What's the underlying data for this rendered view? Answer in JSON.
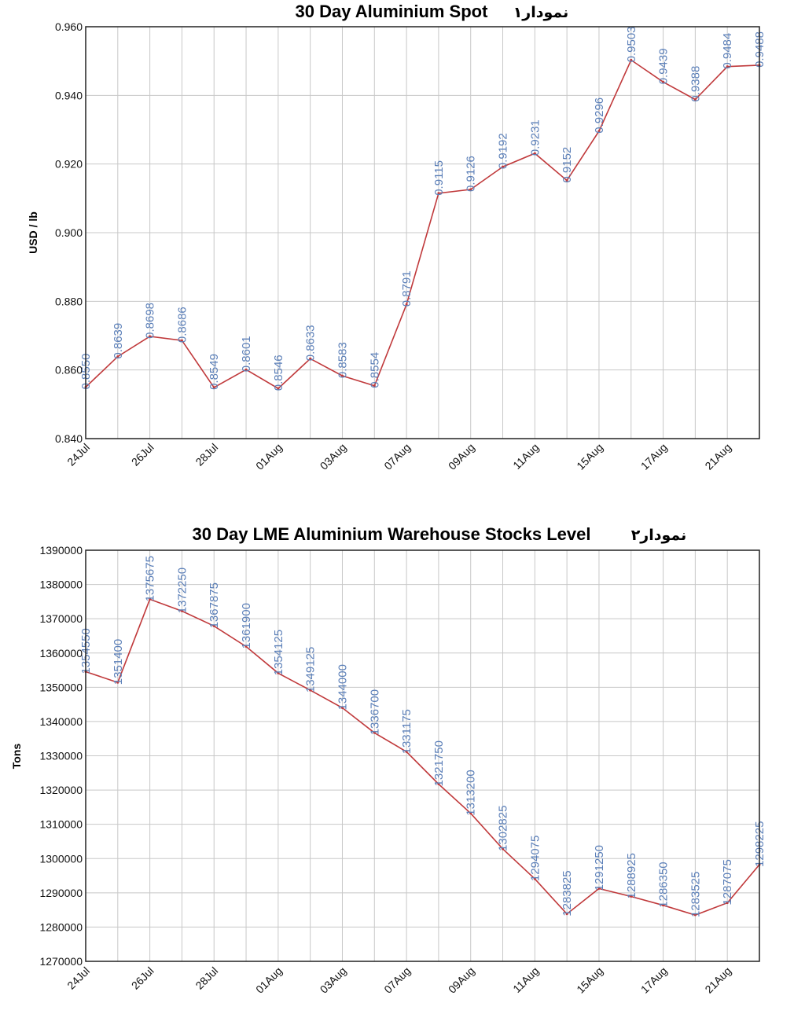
{
  "chart_data": [
    {
      "type": "line",
      "title": "30 Day Aluminium Spot",
      "tag": "نمودار۱",
      "ylabel": "USD / lb",
      "xlabel": "",
      "ylim": [
        0.84,
        0.96
      ],
      "ytick_values": [
        0.84,
        0.86,
        0.88,
        0.9,
        0.92,
        0.94,
        0.96
      ],
      "ytick_labels": [
        "0.840",
        "0.860",
        "0.880",
        "0.900",
        "0.920",
        "0.940",
        "0.960"
      ],
      "xtick_labels": [
        "24Jul",
        "26Jul",
        "28Jul",
        "01Aug",
        "03Aug",
        "07Aug",
        "09Aug",
        "11Aug",
        "15Aug",
        "17Aug",
        "21Aug"
      ],
      "grid": true,
      "color": "#c0393b",
      "label_color": "#5b7fb8",
      "values": [
        0.855,
        0.8639,
        0.8698,
        0.8686,
        0.8549,
        0.8601,
        0.8546,
        0.8633,
        0.8583,
        0.8554,
        0.8791,
        0.9115,
        0.9126,
        0.9192,
        0.9231,
        0.9152,
        0.9296,
        0.9503,
        0.9439,
        0.9388,
        0.9484,
        0.9488
      ],
      "value_labels": [
        "0.8550",
        "0.8639",
        "0.8698",
        "0.8686",
        "0.8549",
        "0.8601",
        "0.8546",
        "0.8633",
        "0.8583",
        "0.8554",
        "0.8791",
        "0.9115",
        "0.9126",
        "0.9192",
        "0.9231",
        "0.9152",
        "0.9296",
        "0.9503",
        "0.9439",
        "0.9388",
        "0.9484",
        "0.9488"
      ]
    },
    {
      "type": "line",
      "title": "30 Day LME Aluminium Warehouse Stocks Level",
      "tag": "نمودار۲",
      "ylabel": "Tons",
      "xlabel": "",
      "ylim": [
        1270000,
        1390000
      ],
      "ytick_values": [
        1270000,
        1280000,
        1290000,
        1300000,
        1310000,
        1320000,
        1330000,
        1340000,
        1350000,
        1360000,
        1370000,
        1380000,
        1390000
      ],
      "ytick_labels": [
        "1270000",
        "1280000",
        "1290000",
        "1300000",
        "1310000",
        "1320000",
        "1330000",
        "1340000",
        "1350000",
        "1360000",
        "1370000",
        "1380000",
        "1390000"
      ],
      "xtick_labels": [
        "24Jul",
        "26Jul",
        "28Jul",
        "01Aug",
        "03Aug",
        "07Aug",
        "09Aug",
        "11Aug",
        "15Aug",
        "17Aug",
        "21Aug"
      ],
      "grid": true,
      "color": "#c0393b",
      "label_color": "#5b7fb8",
      "values": [
        1354550,
        1351400,
        1375675,
        1372250,
        1367875,
        1361900,
        1354125,
        1349125,
        1344000,
        1336700,
        1331175,
        1321750,
        1313200,
        1302825,
        1294075,
        1283825,
        1291250,
        1288925,
        1286350,
        1283525,
        1287075,
        1298225
      ],
      "value_labels": [
        "1354550",
        "1351400",
        "1375675",
        "1372250",
        "1367875",
        "1361900",
        "1354125",
        "1349125",
        "1344000",
        "1336700",
        "1331175",
        "1321750",
        "1313200",
        "1302825",
        "1294075",
        "1283825",
        "1291250",
        "1288925",
        "1286350",
        "1283525",
        "1287075",
        "1298225"
      ]
    }
  ]
}
